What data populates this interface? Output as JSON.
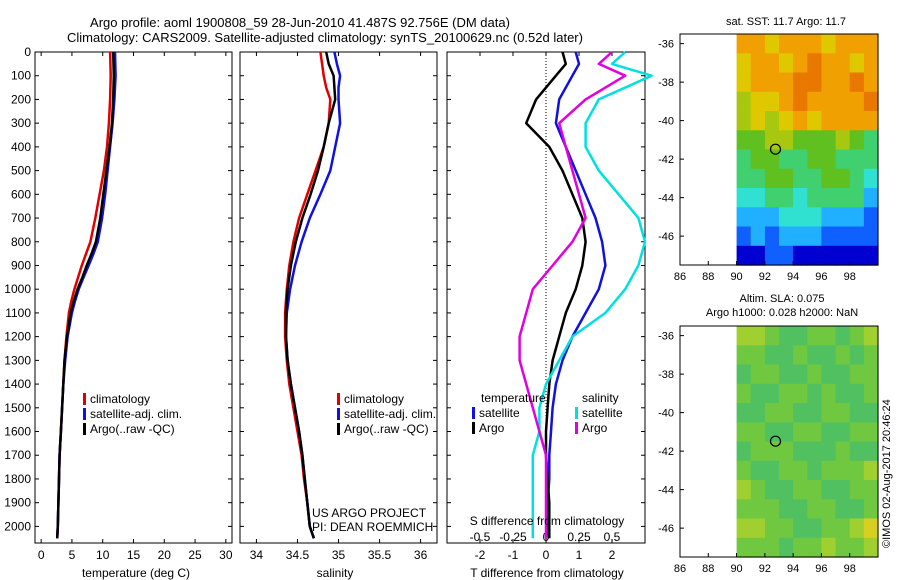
{
  "header": {
    "line1": "Argo profile: aoml 1900808_59 28-Jun-2010 41.487S 92.756E (DM data)",
    "line2": "Climatology: CARS2009. Satellite-adjusted climatology: synTS_20100629.nc (0.52d later)"
  },
  "colors": {
    "climatology": "#e00000",
    "satellite": "#1010e0",
    "argo": "#000000",
    "sat_s": "#00e0e0",
    "argo_s": "#e000e0"
  },
  "depth_axis": {
    "ticks": [
      "0",
      "100",
      "200",
      "300",
      "400",
      "500",
      "600",
      "700",
      "800",
      "900",
      "1000",
      "1100",
      "1200",
      "1300",
      "1400",
      "1500",
      "1600",
      "1700",
      "1800",
      "1900",
      "2000"
    ],
    "range": [
      0,
      2070
    ]
  },
  "chart_data": [
    {
      "type": "line",
      "xlabel": "temperature (deg C)",
      "xlim": [
        -1,
        31
      ],
      "xticks": [
        "0",
        "5",
        "10",
        "15",
        "20",
        "25",
        "30"
      ],
      "legend": [
        "climatology",
        "satellite-adj. clim.",
        "Argo(..raw -QC)"
      ],
      "series": [
        {
          "name": "climatology",
          "x": [
            11.2,
            11.3,
            11.2,
            11.0,
            10.7,
            10.2,
            9.5,
            8.8,
            8.0,
            7.3,
            6.6,
            6.0,
            5.4,
            4.9,
            4.5,
            4.1,
            3.8,
            3.6,
            3.4,
            3.2,
            3.0,
            2.9,
            2.8,
            2.7,
            2.6
          ],
          "y": [
            0,
            100,
            200,
            300,
            400,
            500,
            600,
            700,
            800,
            850,
            900,
            950,
            1000,
            1050,
            1100,
            1200,
            1300,
            1400,
            1500,
            1600,
            1700,
            1800,
            1900,
            2000,
            2050
          ]
        },
        {
          "name": "satellite-adj. clim.",
          "x": [
            12.0,
            12.1,
            11.9,
            11.6,
            11.2,
            10.8,
            10.4,
            9.9,
            9.2,
            8.5,
            7.7,
            6.9,
            6.1,
            5.5,
            5.0,
            4.3,
            3.9,
            3.6,
            3.4,
            3.2,
            3.0,
            2.9,
            2.8,
            2.7,
            2.6
          ],
          "y": [
            0,
            100,
            200,
            300,
            400,
            500,
            600,
            700,
            800,
            850,
            900,
            950,
            1000,
            1050,
            1100,
            1200,
            1300,
            1400,
            1500,
            1600,
            1700,
            1800,
            1900,
            2000,
            2050
          ]
        },
        {
          "name": "Argo(..raw -QC)",
          "x": [
            11.7,
            11.8,
            11.7,
            11.5,
            11.1,
            10.6,
            10.1,
            9.6,
            8.9,
            8.2,
            7.4,
            6.7,
            5.9,
            5.3,
            4.8,
            4.2,
            3.8,
            3.6,
            3.4,
            3.2,
            3.0,
            2.9,
            2.8,
            2.7,
            2.6
          ],
          "y": [
            0,
            100,
            200,
            300,
            400,
            500,
            600,
            700,
            800,
            850,
            900,
            950,
            1000,
            1050,
            1100,
            1200,
            1300,
            1400,
            1500,
            1600,
            1700,
            1800,
            1900,
            2000,
            2050
          ]
        }
      ]
    },
    {
      "type": "line",
      "xlabel": "salinity",
      "xlim": [
        33.8,
        36.2
      ],
      "xticks": [
        "34",
        "34.5",
        "35",
        "35.5",
        "36"
      ],
      "legend": [
        "climatology",
        "satellite-adj. clim.",
        "Argo(..raw -QC)"
      ],
      "credit": [
        "US ARGO PROJECT",
        "PI: DEAN ROEMMICH"
      ],
      "series": [
        {
          "name": "climatology",
          "x": [
            34.78,
            34.8,
            34.82,
            34.85,
            34.9,
            34.88,
            34.82,
            34.72,
            34.62,
            34.52,
            34.45,
            34.4,
            34.37,
            34.35,
            34.35,
            34.37,
            34.4,
            34.45,
            34.5,
            34.55,
            34.58,
            34.62,
            34.65,
            34.68,
            34.7
          ],
          "y": [
            0,
            50,
            100,
            150,
            200,
            300,
            400,
            500,
            600,
            700,
            800,
            900,
            1000,
            1100,
            1200,
            1300,
            1400,
            1500,
            1600,
            1700,
            1800,
            1900,
            2000,
            2030,
            2050
          ]
        },
        {
          "name": "satellite-adj. clim.",
          "x": [
            34.95,
            34.98,
            35.02,
            35.0,
            35.0,
            35.02,
            34.96,
            34.9,
            34.78,
            34.65,
            34.55,
            34.47,
            34.41,
            34.37,
            34.36,
            34.38,
            34.42,
            34.47,
            34.52,
            34.56,
            34.59,
            34.62,
            34.65,
            34.68,
            34.7
          ],
          "y": [
            0,
            50,
            100,
            150,
            200,
            300,
            400,
            500,
            600,
            700,
            800,
            900,
            1000,
            1100,
            1200,
            1300,
            1400,
            1500,
            1600,
            1700,
            1800,
            1900,
            2000,
            2030,
            2050
          ]
        },
        {
          "name": "Argo(..raw -QC)",
          "x": [
            34.85,
            34.88,
            34.94,
            34.95,
            34.96,
            34.88,
            34.82,
            34.75,
            34.66,
            34.56,
            34.48,
            34.42,
            34.38,
            34.36,
            34.36,
            34.38,
            34.42,
            34.47,
            34.52,
            34.56,
            34.59,
            34.62,
            34.65,
            34.68,
            34.7
          ],
          "y": [
            0,
            50,
            100,
            150,
            200,
            300,
            400,
            500,
            600,
            700,
            800,
            900,
            1000,
            1100,
            1200,
            1300,
            1400,
            1500,
            1600,
            1700,
            1800,
            1900,
            2000,
            2030,
            2050
          ]
        }
      ]
    },
    {
      "type": "line",
      "xlabel": "T difference from climatology",
      "xlabel_top": "S difference from climatology",
      "xlim": [
        -3,
        3
      ],
      "xticks": [
        "-2",
        "-1",
        "0",
        "1",
        "2"
      ],
      "xticks_s": [
        "-0.5",
        "-0.25",
        "0",
        "0.25",
        "0.5"
      ],
      "legend_heading_t": "temperature",
      "legend_heading_s": "salinity",
      "legend_t": [
        "satellite",
        "Argo"
      ],
      "legend_s": [
        "satellite",
        "Argo"
      ],
      "series": [
        {
          "name": "satellite",
          "kind": "T",
          "x": [
            0.9,
            1.0,
            0.8,
            0.4,
            0.3,
            0.6,
            0.9,
            1.2,
            1.5,
            1.7,
            1.8,
            1.6,
            1.2,
            0.8,
            0.5,
            0.3,
            0.2,
            0.15,
            0.1,
            0.1,
            0.05,
            0.05,
            0.0
          ],
          "y": [
            0,
            50,
            100,
            200,
            300,
            400,
            500,
            600,
            700,
            800,
            900,
            1000,
            1100,
            1200,
            1300,
            1400,
            1500,
            1600,
            1700,
            1800,
            1900,
            2000,
            2050
          ]
        },
        {
          "name": "Argo",
          "kind": "T",
          "x": [
            0.5,
            0.6,
            0.3,
            -0.3,
            -0.6,
            0.1,
            0.5,
            0.8,
            1.1,
            1.2,
            1.1,
            0.9,
            0.6,
            0.4,
            0.2,
            0.1,
            0.05,
            0.0,
            0.0,
            0.05,
            0.1,
            0.1,
            0.1
          ],
          "y": [
            0,
            50,
            100,
            200,
            300,
            400,
            500,
            600,
            700,
            800,
            900,
            1000,
            1100,
            1200,
            1300,
            1400,
            1500,
            1600,
            1700,
            1800,
            1900,
            2000,
            2050
          ]
        },
        {
          "name": "satellite",
          "kind": "S",
          "x": [
            0.6,
            0.5,
            0.8,
            0.4,
            0.3,
            0.3,
            0.4,
            0.55,
            0.7,
            0.75,
            0.7,
            0.6,
            0.45,
            0.2,
            0.1,
            0.0,
            -0.05,
            -0.05,
            -0.1,
            -0.1,
            -0.1,
            -0.1
          ],
          "y": [
            0,
            50,
            100,
            200,
            300,
            400,
            500,
            600,
            700,
            800,
            900,
            1000,
            1100,
            1200,
            1300,
            1400,
            1500,
            1600,
            1700,
            1800,
            1900,
            2050
          ]
        },
        {
          "name": "Argo",
          "kind": "S",
          "x": [
            0.5,
            0.4,
            0.6,
            0.3,
            0.1,
            0.15,
            0.2,
            0.25,
            0.3,
            0.2,
            0.05,
            -0.1,
            -0.15,
            -0.2,
            -0.2,
            -0.15,
            -0.1,
            -0.05,
            0.0,
            0.0,
            0.0,
            0.0
          ],
          "y": [
            0,
            50,
            100,
            200,
            300,
            400,
            500,
            600,
            700,
            800,
            900,
            1000,
            1100,
            1200,
            1300,
            1400,
            1500,
            1600,
            1700,
            1800,
            1900,
            2050
          ]
        }
      ]
    },
    {
      "type": "heatmap",
      "title": "sat. SST: 11.7 Argo: 11.7",
      "xticks": [
        "86",
        "88",
        "90",
        "92",
        "94",
        "96",
        "98"
      ],
      "yticks": [
        "-36",
        "-38",
        "-40",
        "-42",
        "-44",
        "-46"
      ],
      "xlim": [
        86,
        100
      ],
      "ylim": [
        -47.5,
        -35.5
      ],
      "data_xlim": [
        90,
        100
      ],
      "marker": [
        92.756,
        -41.487
      ],
      "palette": [
        "#00007a",
        "#0000d0",
        "#1060ff",
        "#20b0ff",
        "#30e0d0",
        "#40d070",
        "#60c020",
        "#a8c810",
        "#e0c800",
        "#f0a000",
        "#e87800",
        "#d05000"
      ],
      "levels": [
        [
          9,
          9,
          8,
          9,
          9,
          9,
          8,
          9,
          9,
          9
        ],
        [
          8,
          9,
          9,
          8,
          9,
          10,
          9,
          9,
          8,
          9
        ],
        [
          8,
          9,
          9,
          9,
          10,
          10,
          9,
          9,
          10,
          9
        ],
        [
          7,
          8,
          8,
          9,
          10,
          9,
          9,
          9,
          9,
          10
        ],
        [
          7,
          8,
          7,
          8,
          9,
          8,
          9,
          9,
          9,
          9
        ],
        [
          6,
          6,
          7,
          7,
          6,
          6,
          6,
          7,
          6,
          5
        ],
        [
          5,
          6,
          6,
          5,
          5,
          6,
          6,
          5,
          5,
          5
        ],
        [
          5,
          5,
          6,
          6,
          5,
          5,
          6,
          6,
          5,
          4
        ],
        [
          4,
          4,
          5,
          5,
          4,
          5,
          5,
          5,
          5,
          3
        ],
        [
          3,
          3,
          3,
          4,
          4,
          4,
          3,
          3,
          3,
          2
        ],
        [
          2,
          3,
          2,
          3,
          3,
          3,
          2,
          2,
          2,
          2
        ],
        [
          1,
          1,
          2,
          2,
          1,
          1,
          1,
          1,
          1,
          1
        ]
      ]
    },
    {
      "type": "heatmap",
      "title_line1": "Altim. SLA: 0.075",
      "title_line2": "Argo h1000: 0.028 h2000: NaN",
      "xticks": [
        "86",
        "88",
        "90",
        "92",
        "94",
        "96",
        "98"
      ],
      "yticks": [
        "-36",
        "-38",
        "-40",
        "-42",
        "-44",
        "-46"
      ],
      "xlim": [
        86,
        100
      ],
      "ylim": [
        -47.5,
        -35.5
      ],
      "data_xlim": [
        90,
        100
      ],
      "marker": [
        92.756,
        -41.487
      ],
      "palette": [
        "#20a8d0",
        "#30c8a0",
        "#50c060",
        "#70c840",
        "#a0d030",
        "#d8d020",
        "#f0a010",
        "#e86010"
      ],
      "levels": [
        [
          4,
          4,
          3,
          2,
          2,
          3,
          3,
          2,
          3,
          4
        ],
        [
          3,
          3,
          2,
          2,
          3,
          2,
          2,
          3,
          2,
          3
        ],
        [
          2,
          3,
          3,
          2,
          2,
          3,
          2,
          2,
          3,
          3
        ],
        [
          3,
          2,
          2,
          3,
          3,
          2,
          3,
          2,
          2,
          3
        ],
        [
          2,
          2,
          3,
          3,
          2,
          2,
          3,
          3,
          2,
          2
        ],
        [
          3,
          3,
          2,
          2,
          3,
          3,
          2,
          2,
          3,
          3
        ],
        [
          2,
          3,
          3,
          3,
          2,
          2,
          2,
          3,
          2,
          2
        ],
        [
          3,
          2,
          2,
          3,
          3,
          2,
          3,
          3,
          3,
          4
        ],
        [
          4,
          3,
          2,
          2,
          3,
          3,
          2,
          2,
          3,
          3
        ],
        [
          3,
          3,
          3,
          2,
          2,
          3,
          3,
          2,
          2,
          3
        ],
        [
          4,
          4,
          3,
          3,
          2,
          2,
          3,
          3,
          4,
          5
        ],
        [
          3,
          3,
          3,
          2,
          3,
          3,
          4,
          3,
          3,
          4
        ]
      ]
    }
  ],
  "side_label": "©IMOS 02-Aug-2017 20:46:24"
}
